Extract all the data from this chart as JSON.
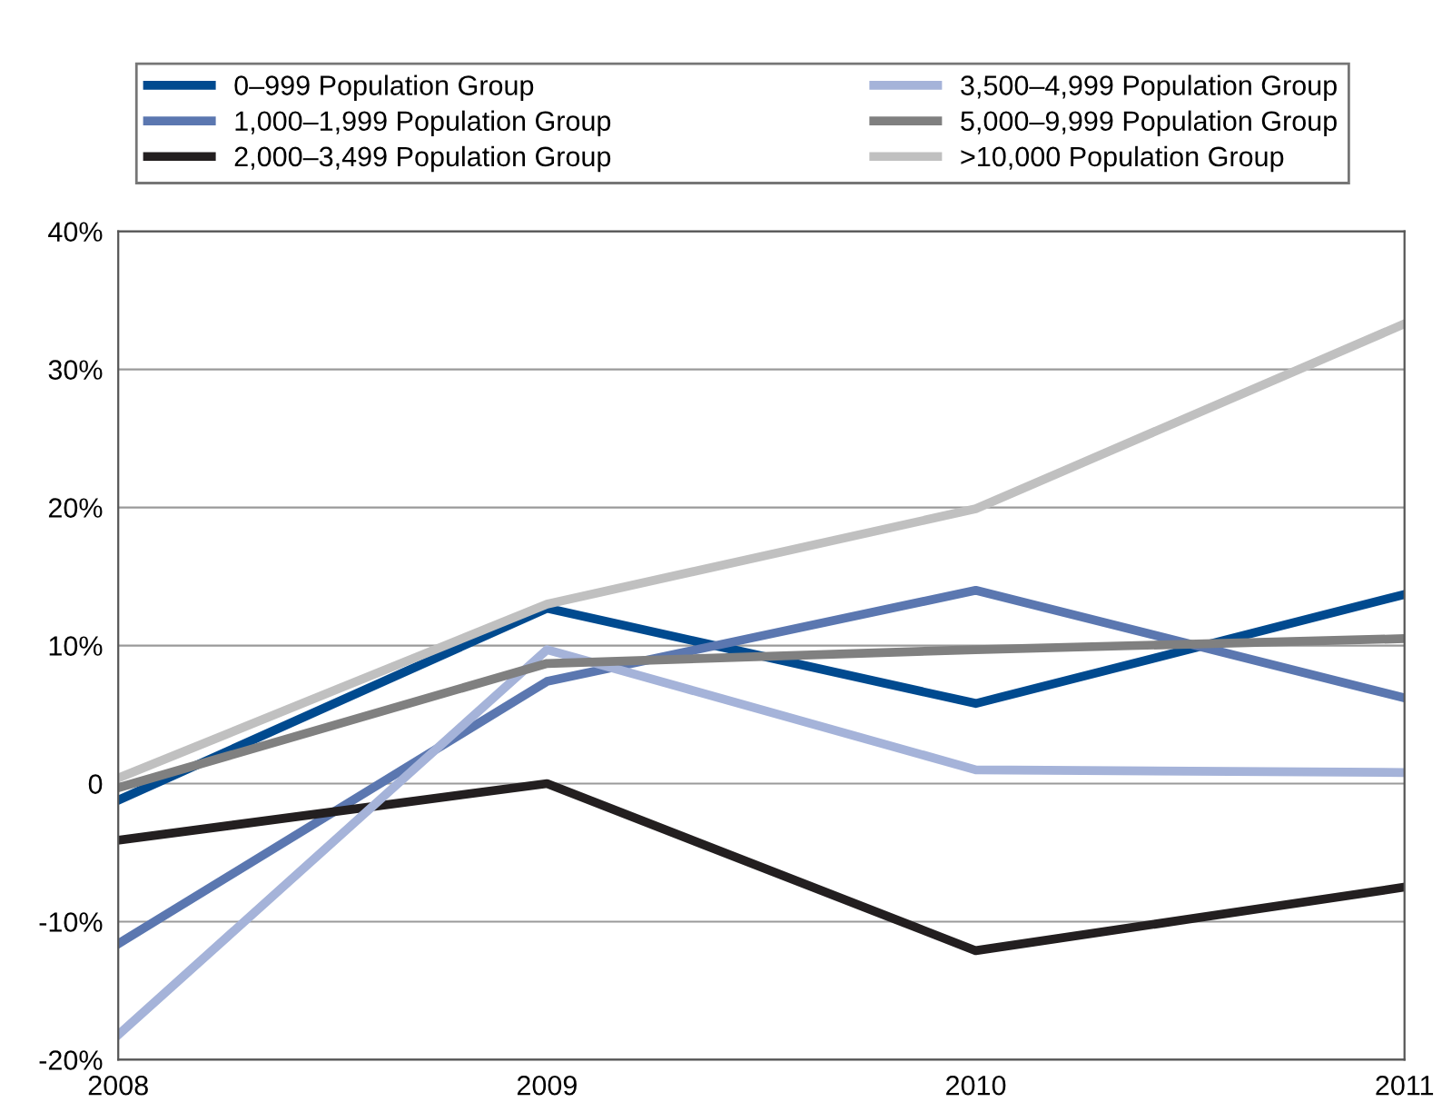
{
  "chart_data": {
    "type": "line",
    "x": [
      2008,
      2009,
      2010,
      2011
    ],
    "series": [
      {
        "name": "0–999 Population Group",
        "color": "#004a8f",
        "values": [
          -1.2,
          12.7,
          5.8,
          13.7
        ]
      },
      {
        "name": "1,000–1,999 Population Group",
        "color": "#5b77b0",
        "values": [
          -11.6,
          7.4,
          14.0,
          6.2
        ]
      },
      {
        "name": "2,000–3,499 Population Group",
        "color": "#231f20",
        "values": [
          -4.1,
          0.0,
          -12.1,
          -7.5
        ]
      },
      {
        "name": "3,500–4,999 Population Group",
        "color": "#a5b3d9",
        "values": [
          -18.2,
          9.7,
          1.0,
          0.8
        ]
      },
      {
        "name": "5,000–9,999 Population Group",
        "color": "#808080",
        "values": [
          -0.3,
          8.7,
          9.7,
          10.5
        ]
      },
      {
        "name": ">10,000 Population Group",
        "color": "#c0c0c0",
        "values": [
          0.4,
          13.0,
          19.9,
          33.3
        ]
      }
    ],
    "xlim": [
      2008,
      2011
    ],
    "xticks": [
      2008,
      2009,
      2010,
      2011
    ],
    "ylim": [
      -20,
      40
    ],
    "yticks": [
      {
        "value": -20,
        "label": "-20%"
      },
      {
        "value": -10,
        "label": "-10%"
      },
      0,
      {
        "value": 10,
        "label": "10%"
      },
      {
        "value": 20,
        "label": "20%"
      },
      {
        "value": 30,
        "label": "30%"
      },
      {
        "value": 40,
        "label": "40%"
      }
    ],
    "grid": "y",
    "legend": "top",
    "marker": "none",
    "line_style": "solid"
  }
}
